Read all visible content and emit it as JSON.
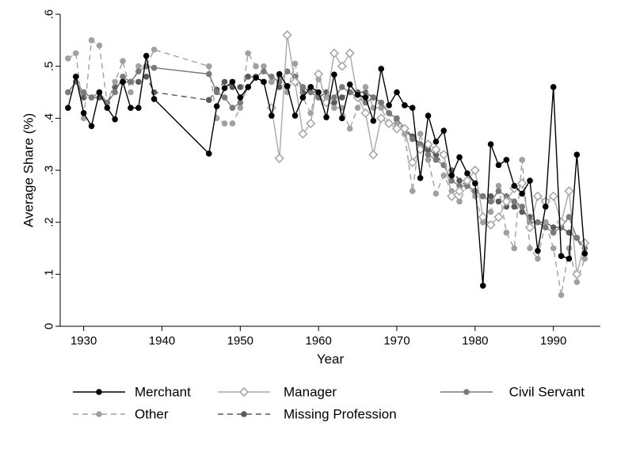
{
  "chart_data": {
    "type": "line",
    "xlabel": "Year",
    "ylabel": "Average Share (%)",
    "xlim": [
      1927,
      1996
    ],
    "ylim": [
      0,
      0.6
    ],
    "xticks": [
      1930,
      1940,
      1950,
      1960,
      1970,
      1980,
      1990
    ],
    "xtick_labels": [
      "1930",
      "1940",
      "1950",
      "1960",
      "1970",
      "1980",
      "1990"
    ],
    "yticks": [
      0,
      0.1,
      0.2,
      0.3,
      0.4,
      0.5,
      0.6
    ],
    "ytick_labels": [
      "0",
      ".1",
      ".2",
      ".3",
      ".4",
      ".5",
      ".6"
    ],
    "grid": false,
    "legend_position": "bottom",
    "series": [
      {
        "name": "Merchant",
        "color": "#000000",
        "line": "solid",
        "marker": "filled-circle",
        "points": [
          [
            1928,
            0.42
          ],
          [
            1929,
            0.48
          ],
          [
            1930,
            0.41
          ],
          [
            1931,
            0.385
          ],
          [
            1932,
            0.45
          ],
          [
            1933,
            0.42
          ],
          [
            1934,
            0.398
          ],
          [
            1935,
            0.47
          ],
          [
            1936,
            0.42
          ],
          [
            1937,
            0.42
          ],
          [
            1938,
            0.52
          ],
          [
            1939,
            0.437
          ],
          [
            1946,
            0.332
          ],
          [
            1947,
            0.423
          ],
          [
            1948,
            0.458
          ],
          [
            1949,
            0.47
          ],
          [
            1950,
            0.44
          ],
          [
            1951,
            0.46
          ],
          [
            1952,
            0.478
          ],
          [
            1953,
            0.47
          ],
          [
            1954,
            0.405
          ],
          [
            1955,
            0.485
          ],
          [
            1956,
            0.462
          ],
          [
            1957,
            0.405
          ],
          [
            1958,
            0.44
          ],
          [
            1959,
            0.46
          ],
          [
            1960,
            0.45
          ],
          [
            1961,
            0.402
          ],
          [
            1962,
            0.484
          ],
          [
            1963,
            0.4
          ],
          [
            1964,
            0.465
          ],
          [
            1965,
            0.445
          ],
          [
            1966,
            0.44
          ],
          [
            1967,
            0.395
          ],
          [
            1968,
            0.495
          ],
          [
            1969,
            0.425
          ],
          [
            1970,
            0.45
          ],
          [
            1971,
            0.425
          ],
          [
            1972,
            0.42
          ],
          [
            1973,
            0.285
          ],
          [
            1974,
            0.405
          ],
          [
            1975,
            0.355
          ],
          [
            1976,
            0.376
          ],
          [
            1977,
            0.29
          ],
          [
            1978,
            0.325
          ],
          [
            1979,
            0.294
          ],
          [
            1980,
            0.275
          ],
          [
            1981,
            0.078
          ],
          [
            1982,
            0.35
          ],
          [
            1983,
            0.31
          ],
          [
            1984,
            0.32
          ],
          [
            1985,
            0.27
          ],
          [
            1986,
            0.255
          ],
          [
            1987,
            0.28
          ],
          [
            1988,
            0.145
          ],
          [
            1989,
            0.23
          ],
          [
            1990,
            0.46
          ],
          [
            1991,
            0.135
          ],
          [
            1992,
            0.13
          ],
          [
            1993,
            0.33
          ],
          [
            1994,
            0.14
          ]
        ]
      },
      {
        "name": "Manager",
        "color": "#a8a8a8",
        "line": "solid",
        "marker": "hollow-diamond",
        "points": [
          [
            1954,
            0.42
          ],
          [
            1955,
            0.323
          ],
          [
            1956,
            0.56
          ],
          [
            1957,
            0.47
          ],
          [
            1958,
            0.37
          ],
          [
            1959,
            0.39
          ],
          [
            1960,
            0.485
          ],
          [
            1961,
            0.43
          ],
          [
            1962,
            0.525
          ],
          [
            1963,
            0.5
          ],
          [
            1964,
            0.525
          ],
          [
            1965,
            0.44
          ],
          [
            1966,
            0.41
          ],
          [
            1967,
            0.33
          ],
          [
            1968,
            0.4
          ],
          [
            1969,
            0.39
          ],
          [
            1970,
            0.38
          ],
          [
            1971,
            0.38
          ],
          [
            1972,
            0.315
          ],
          [
            1973,
            0.34
          ],
          [
            1974,
            0.35
          ],
          [
            1975,
            0.34
          ],
          [
            1976,
            0.33
          ],
          [
            1977,
            0.25
          ],
          [
            1978,
            0.26
          ],
          [
            1979,
            0.28
          ],
          [
            1980,
            0.3
          ],
          [
            1981,
            0.21
          ],
          [
            1982,
            0.195
          ],
          [
            1983,
            0.21
          ],
          [
            1984,
            0.24
          ],
          [
            1985,
            0.265
          ],
          [
            1986,
            0.275
          ],
          [
            1987,
            0.19
          ],
          [
            1988,
            0.25
          ],
          [
            1989,
            0.24
          ],
          [
            1990,
            0.25
          ],
          [
            1991,
            0.2
          ],
          [
            1992,
            0.26
          ],
          [
            1993,
            0.1
          ],
          [
            1994,
            0.16
          ]
        ]
      },
      {
        "name": "Civil Servant",
        "color": "#7a7a7a",
        "line": "solid",
        "marker": "filled-circle",
        "points": [
          [
            1928,
            0.45
          ],
          [
            1929,
            0.47
          ],
          [
            1930,
            0.45
          ],
          [
            1931,
            0.44
          ],
          [
            1932,
            0.45
          ],
          [
            1933,
            0.43
          ],
          [
            1934,
            0.45
          ],
          [
            1935,
            0.48
          ],
          [
            1936,
            0.47
          ],
          [
            1937,
            0.49
          ],
          [
            1938,
            0.5
          ],
          [
            1939,
            0.497
          ],
          [
            1946,
            0.485
          ],
          [
            1947,
            0.45
          ],
          [
            1948,
            0.44
          ],
          [
            1949,
            0.42
          ],
          [
            1950,
            0.43
          ],
          [
            1951,
            0.46
          ],
          [
            1952,
            0.48
          ],
          [
            1953,
            0.49
          ],
          [
            1954,
            0.48
          ],
          [
            1955,
            0.47
          ],
          [
            1956,
            0.49
          ],
          [
            1957,
            0.48
          ],
          [
            1958,
            0.46
          ],
          [
            1959,
            0.45
          ],
          [
            1960,
            0.44
          ],
          [
            1961,
            0.43
          ],
          [
            1962,
            0.44
          ],
          [
            1963,
            0.46
          ],
          [
            1964,
            0.45
          ],
          [
            1965,
            0.44
          ],
          [
            1966,
            0.43
          ],
          [
            1967,
            0.44
          ],
          [
            1968,
            0.43
          ],
          [
            1969,
            0.41
          ],
          [
            1970,
            0.4
          ],
          [
            1971,
            0.38
          ],
          [
            1972,
            0.36
          ],
          [
            1973,
            0.35
          ],
          [
            1974,
            0.33
          ],
          [
            1975,
            0.32
          ],
          [
            1976,
            0.31
          ],
          [
            1977,
            0.28
          ],
          [
            1978,
            0.27
          ],
          [
            1979,
            0.27
          ],
          [
            1980,
            0.26
          ],
          [
            1981,
            0.25
          ],
          [
            1982,
            0.24
          ],
          [
            1983,
            0.26
          ],
          [
            1984,
            0.25
          ],
          [
            1985,
            0.24
          ],
          [
            1986,
            0.23
          ],
          [
            1987,
            0.2
          ],
          [
            1988,
            0.2
          ],
          [
            1989,
            0.19
          ],
          [
            1990,
            0.18
          ],
          [
            1991,
            0.19
          ],
          [
            1992,
            0.21
          ],
          [
            1993,
            0.17
          ],
          [
            1994,
            0.15
          ]
        ]
      },
      {
        "name": "Other",
        "color": "#a0a0a0",
        "line": "dashed",
        "marker": "filled-circle",
        "points": [
          [
            1928,
            0.515
          ],
          [
            1929,
            0.525
          ],
          [
            1930,
            0.4
          ],
          [
            1931,
            0.55
          ],
          [
            1932,
            0.54
          ],
          [
            1933,
            0.43
          ],
          [
            1934,
            0.47
          ],
          [
            1935,
            0.51
          ],
          [
            1936,
            0.45
          ],
          [
            1937,
            0.5
          ],
          [
            1938,
            0.5
          ],
          [
            1939,
            0.532
          ],
          [
            1946,
            0.5
          ],
          [
            1947,
            0.4
          ],
          [
            1948,
            0.39
          ],
          [
            1949,
            0.39
          ],
          [
            1950,
            0.42
          ],
          [
            1951,
            0.525
          ],
          [
            1952,
            0.5
          ],
          [
            1953,
            0.5
          ],
          [
            1954,
            0.47
          ],
          [
            1955,
            0.48
          ],
          [
            1956,
            0.45
          ],
          [
            1957,
            0.505
          ],
          [
            1958,
            0.44
          ],
          [
            1959,
            0.41
          ],
          [
            1960,
            0.475
          ],
          [
            1961,
            0.44
          ],
          [
            1962,
            0.42
          ],
          [
            1963,
            0.42
          ],
          [
            1964,
            0.38
          ],
          [
            1965,
            0.42
          ],
          [
            1966,
            0.46
          ],
          [
            1967,
            0.42
          ],
          [
            1968,
            0.42
          ],
          [
            1969,
            0.39
          ],
          [
            1970,
            0.39
          ],
          [
            1971,
            0.37
          ],
          [
            1972,
            0.26
          ],
          [
            1973,
            0.37
          ],
          [
            1974,
            0.32
          ],
          [
            1975,
            0.255
          ],
          [
            1976,
            0.29
          ],
          [
            1977,
            0.26
          ],
          [
            1978,
            0.24
          ],
          [
            1979,
            0.27
          ],
          [
            1980,
            0.25
          ],
          [
            1981,
            0.2
          ],
          [
            1982,
            0.22
          ],
          [
            1983,
            0.27
          ],
          [
            1984,
            0.18
          ],
          [
            1985,
            0.15
          ],
          [
            1986,
            0.32
          ],
          [
            1987,
            0.15
          ],
          [
            1988,
            0.13
          ],
          [
            1989,
            0.2
          ],
          [
            1990,
            0.15
          ],
          [
            1991,
            0.06
          ],
          [
            1992,
            0.15
          ],
          [
            1993,
            0.085
          ],
          [
            1994,
            0.13
          ]
        ]
      },
      {
        "name": "Missing Profession",
        "color": "#5a5a5a",
        "line": "dashed",
        "marker": "filled-circle",
        "points": [
          [
            1928,
            0.45
          ],
          [
            1929,
            0.47
          ],
          [
            1930,
            0.44
          ],
          [
            1931,
            0.44
          ],
          [
            1932,
            0.44
          ],
          [
            1933,
            0.43
          ],
          [
            1934,
            0.46
          ],
          [
            1935,
            0.47
          ],
          [
            1936,
            0.47
          ],
          [
            1937,
            0.47
          ],
          [
            1938,
            0.48
          ],
          [
            1939,
            0.45
          ],
          [
            1946,
            0.435
          ],
          [
            1947,
            0.455
          ],
          [
            1948,
            0.47
          ],
          [
            1949,
            0.46
          ],
          [
            1950,
            0.46
          ],
          [
            1951,
            0.48
          ],
          [
            1952,
            0.48
          ],
          [
            1953,
            0.47
          ],
          [
            1954,
            0.47
          ],
          [
            1955,
            0.46
          ],
          [
            1956,
            0.46
          ],
          [
            1957,
            0.47
          ],
          [
            1958,
            0.45
          ],
          [
            1959,
            0.46
          ],
          [
            1960,
            0.44
          ],
          [
            1961,
            0.45
          ],
          [
            1962,
            0.43
          ],
          [
            1963,
            0.44
          ],
          [
            1964,
            0.45
          ],
          [
            1965,
            0.45
          ],
          [
            1966,
            0.45
          ],
          [
            1967,
            0.44
          ],
          [
            1968,
            0.43
          ],
          [
            1969,
            0.41
          ],
          [
            1970,
            0.39
          ],
          [
            1971,
            0.38
          ],
          [
            1972,
            0.365
          ],
          [
            1973,
            0.35
          ],
          [
            1974,
            0.34
          ],
          [
            1975,
            0.33
          ],
          [
            1976,
            0.31
          ],
          [
            1977,
            0.3
          ],
          [
            1978,
            0.28
          ],
          [
            1979,
            0.27
          ],
          [
            1980,
            0.26
          ],
          [
            1981,
            0.25
          ],
          [
            1982,
            0.25
          ],
          [
            1983,
            0.24
          ],
          [
            1984,
            0.23
          ],
          [
            1985,
            0.23
          ],
          [
            1986,
            0.22
          ],
          [
            1987,
            0.21
          ],
          [
            1988,
            0.2
          ],
          [
            1989,
            0.2
          ],
          [
            1990,
            0.19
          ],
          [
            1991,
            0.19
          ],
          [
            1992,
            0.18
          ],
          [
            1993,
            0.17
          ],
          [
            1994,
            0.14
          ]
        ]
      }
    ]
  }
}
